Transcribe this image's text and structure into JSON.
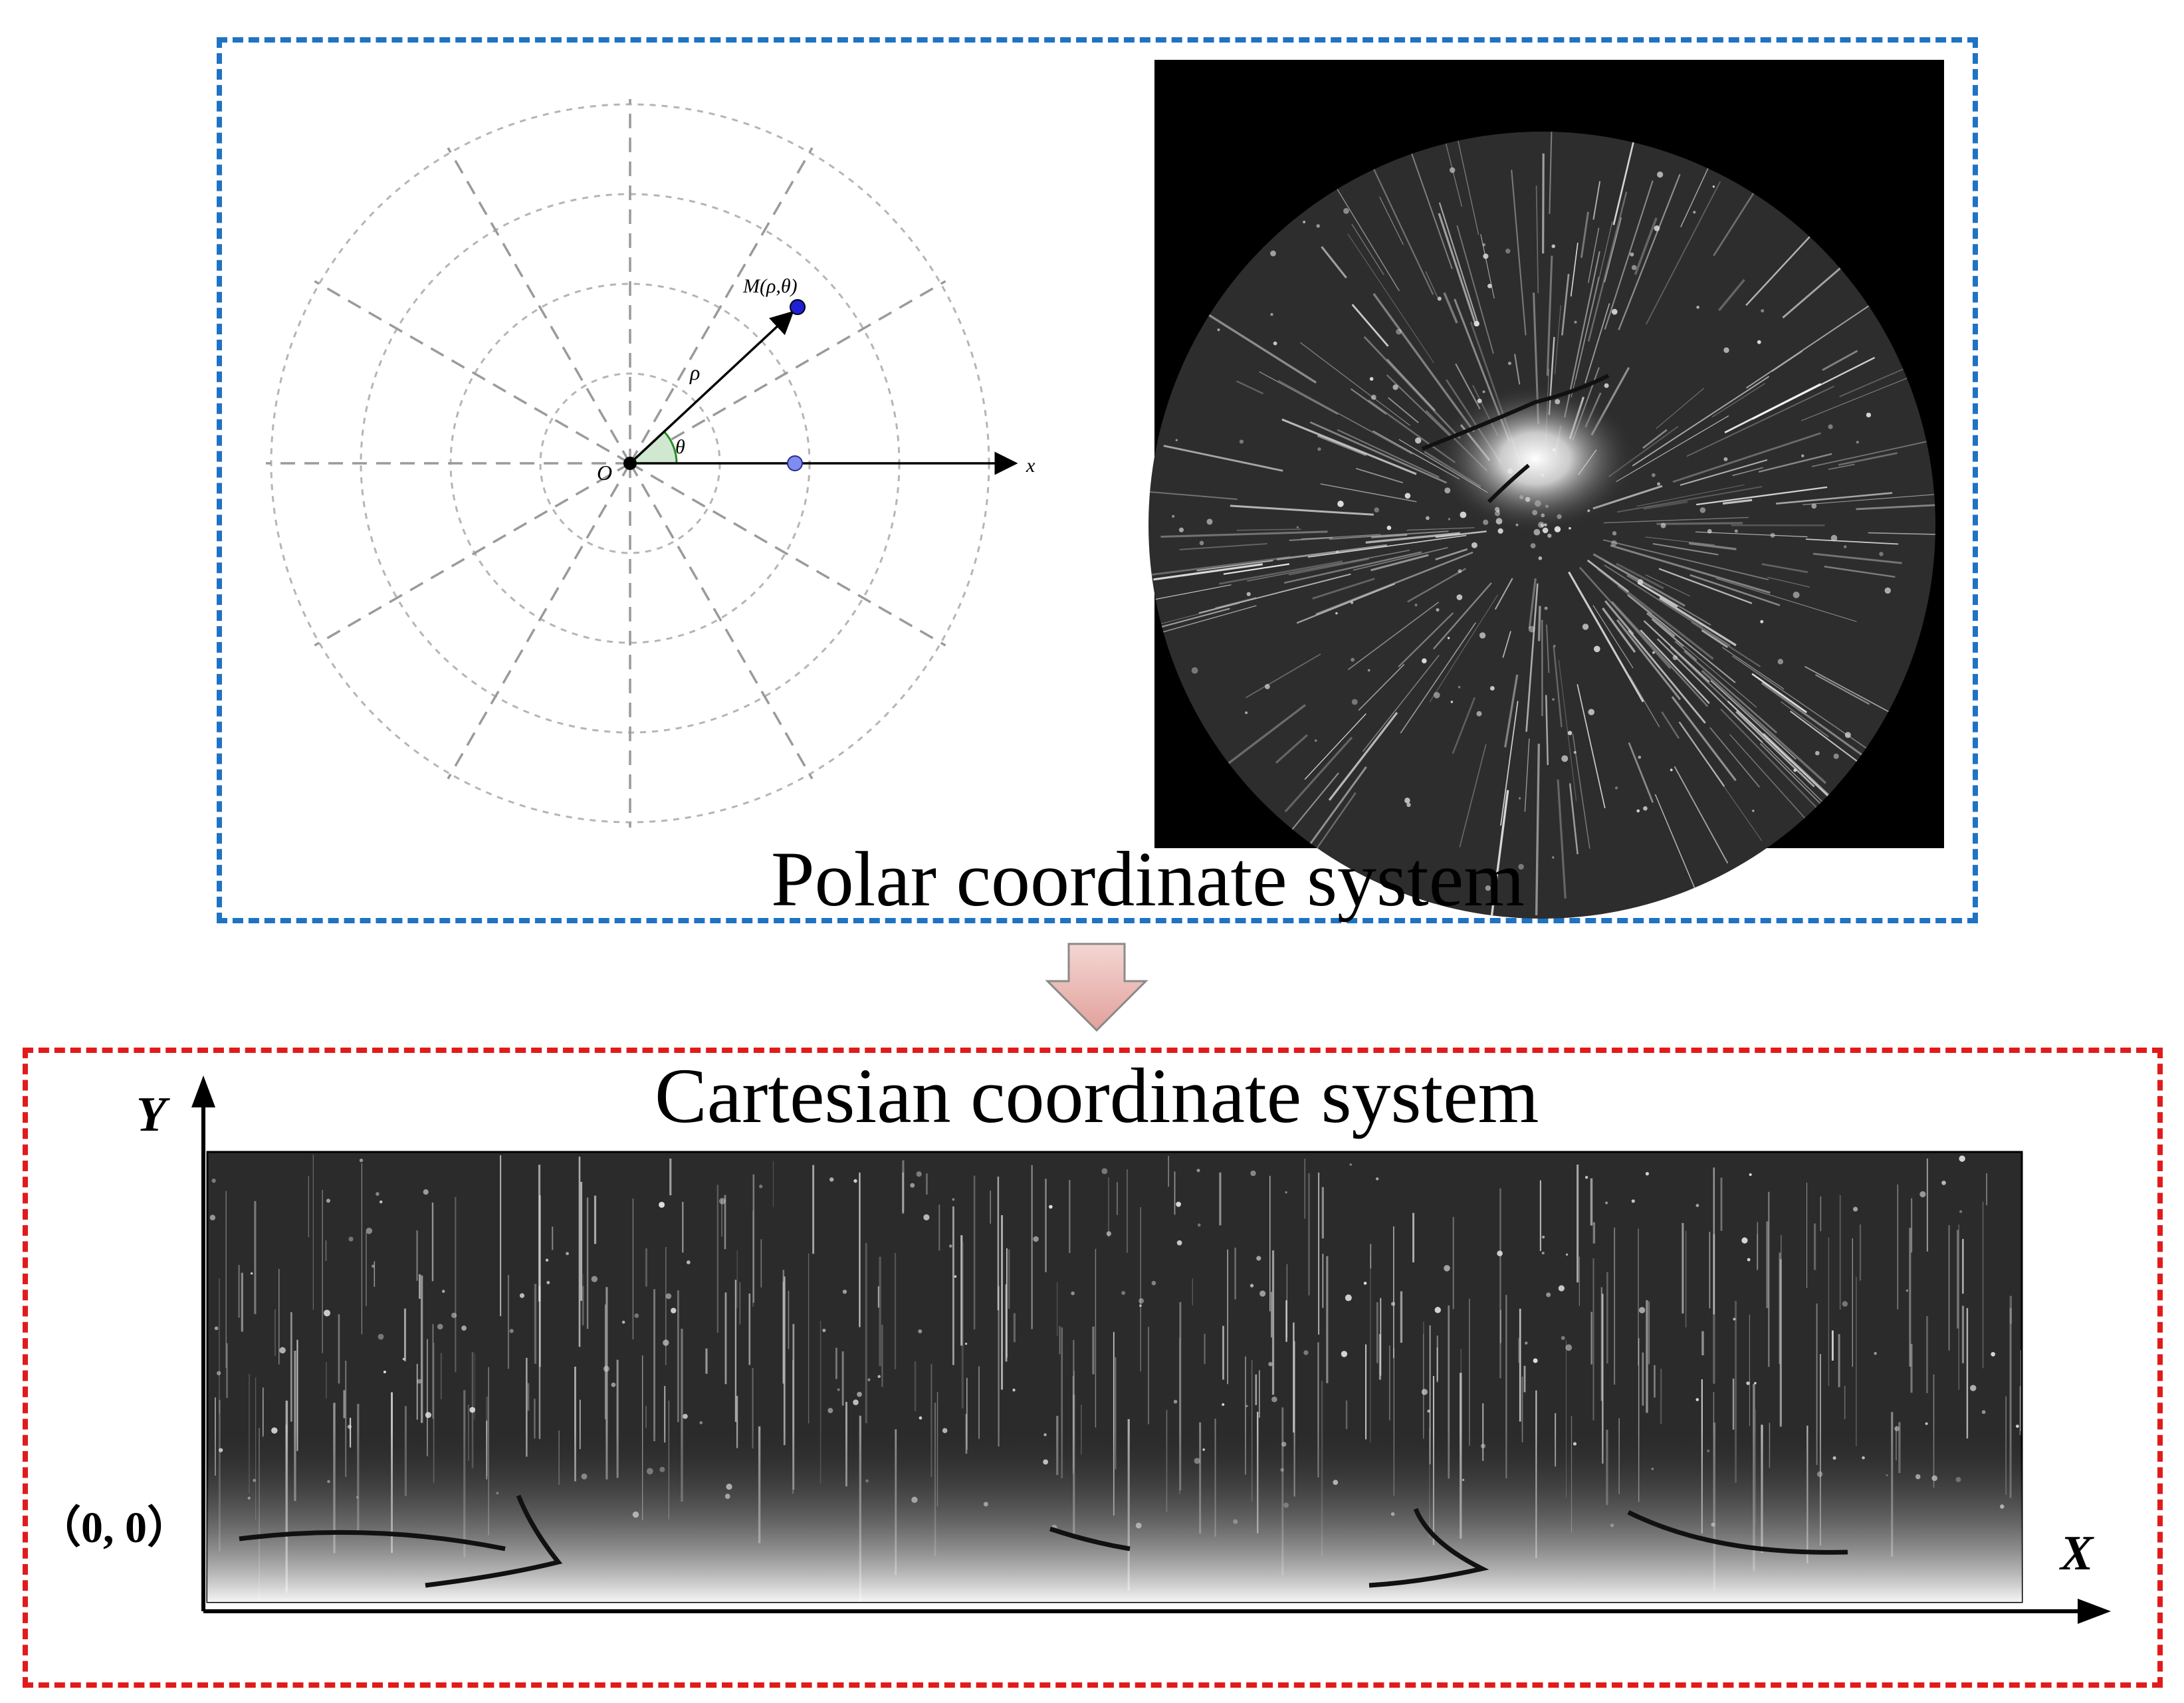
{
  "polar_panel": {
    "title": "Polar coordinate system",
    "border_color": "#1f73c1",
    "diagram": {
      "point_label": "M(ρ,θ)",
      "radius_label": "ρ",
      "angle_label": "θ",
      "origin_label": "O",
      "axis_label": "x",
      "point_color": "#1f1fd8",
      "projection_color": "#7f8cf0",
      "angle_fill": "#cfe8cf"
    },
    "image": {
      "description_icon": "polar-ultrasound-scan"
    }
  },
  "transform_arrow": {
    "icon": "down-arrow-icon",
    "fill": "#e9b7b3",
    "stroke": "#8a8a8a"
  },
  "cartesian_panel": {
    "title": "Cartesian coordinate system",
    "border_color": "#e11b1b",
    "y_label": "Y",
    "x_label": "X",
    "origin_label": "（0, 0）",
    "image": {
      "description_icon": "unwrapped-scan-strip"
    }
  }
}
